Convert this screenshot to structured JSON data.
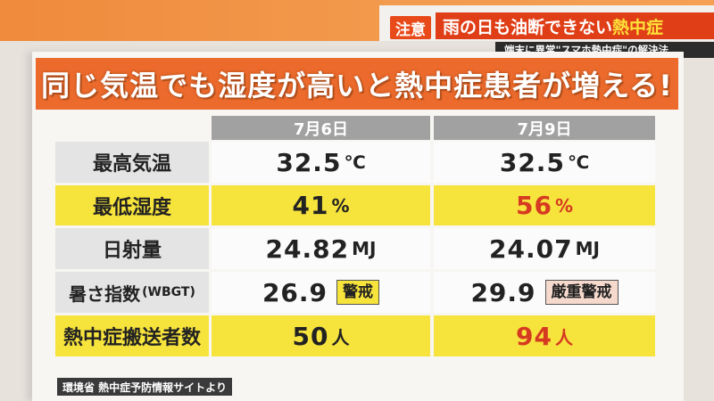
{
  "header": {
    "badge": "注意",
    "headline_main": "雨の日も油断できない",
    "headline_accent": "熱中症",
    "subheadline": "端末に異常\"スマホ熱中症\"の解決法"
  },
  "banner": "同じ気温でも湿度が高いと熱中症患者が増える!",
  "table": {
    "columns": [
      "7月6日",
      "7月9日"
    ],
    "rows": [
      {
        "label": "最高気温",
        "v1": "32.5",
        "u1": "℃",
        "v2": "32.5",
        "u2": "℃"
      },
      {
        "label": "最低湿度",
        "v1": "41",
        "u1": "%",
        "v2": "56",
        "u2": "%"
      },
      {
        "label": "日射量",
        "v1": "24.82",
        "u1": "MJ",
        "v2": "24.07",
        "u2": "MJ"
      },
      {
        "label": "暑さ指数",
        "label_sub": "(WBGT)",
        "v1": "26.9",
        "t1": "警戒",
        "v2": "29.9",
        "t2": "厳重警戒"
      },
      {
        "label": "熱中症搬送者数",
        "v1": "50",
        "u1": "人",
        "v2": "94",
        "u2": "人"
      }
    ]
  },
  "source": "環境省 熱中症予防情報サイトより",
  "colors": {
    "banner": "#eb6a2c",
    "highlight_row": "#f6e33c",
    "accent_red": "#d63a21",
    "headline_bg": "#df3e16"
  }
}
